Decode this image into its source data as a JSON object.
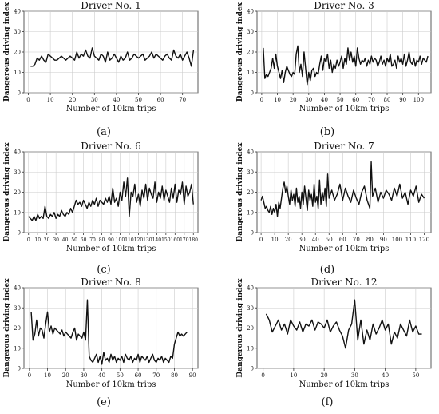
{
  "figure": {
    "panel_labels": [
      "(a)",
      "(b)",
      "(c)",
      "(d)",
      "(e)",
      "(f)"
    ]
  },
  "chart_data": [
    {
      "type": "line",
      "title": "Driver No. 1",
      "xlabel": "Number of 10km trips",
      "ylabel": "Dangerous driving index",
      "xlim": [
        -2,
        77
      ],
      "ylim": [
        0,
        40
      ],
      "xticks": [
        0,
        10,
        20,
        30,
        40,
        50,
        60,
        70
      ],
      "yticks": [
        0,
        10,
        20,
        30,
        40
      ],
      "grid": true,
      "series": [
        {
          "values": [
            13,
            13,
            14,
            17,
            16,
            18,
            16,
            15,
            19,
            18,
            17,
            16,
            16,
            17,
            18,
            17,
            16,
            17,
            18,
            17,
            16,
            20,
            17,
            19,
            18,
            21,
            18,
            17,
            22,
            18,
            17,
            16,
            19,
            18,
            15,
            20,
            16,
            17,
            19,
            17,
            15,
            18,
            16,
            17,
            20,
            16,
            17,
            19,
            18,
            17,
            18,
            19,
            16,
            17,
            18,
            20,
            17,
            19,
            18,
            17,
            16,
            18,
            19,
            17,
            16,
            21,
            18,
            17,
            19,
            16,
            18,
            20,
            17,
            13,
            21
          ]
        }
      ]
    },
    {
      "type": "line",
      "title": "Driver No. 3",
      "xlabel": "Number of 10km trips",
      "ylabel": "Dangerous driving index",
      "xlim": [
        -3,
        108
      ],
      "ylim": [
        0,
        40
      ],
      "xticks": [
        0,
        10,
        20,
        30,
        40,
        50,
        60,
        70,
        80,
        90,
        100
      ],
      "yticks": [
        0,
        10,
        20,
        30,
        40
      ],
      "grid": true,
      "series": [
        {
          "values": [
            22,
            7,
            9,
            8,
            10,
            12,
            17,
            12,
            19,
            13,
            10,
            7,
            11,
            5,
            10,
            13,
            11,
            9,
            8,
            10,
            9,
            19,
            23,
            10,
            14,
            8,
            20,
            12,
            4,
            10,
            6,
            11,
            12,
            8,
            10,
            9,
            14,
            18,
            11,
            17,
            15,
            19,
            12,
            16,
            10,
            14,
            12,
            16,
            13,
            15,
            18,
            12,
            17,
            14,
            22,
            16,
            20,
            15,
            18,
            13,
            22,
            17,
            14,
            16,
            15,
            17,
            13,
            16,
            14,
            18,
            15,
            17,
            16,
            13,
            15,
            18,
            14,
            16,
            13,
            17,
            15,
            19,
            13,
            14,
            16,
            12,
            18,
            15,
            17,
            14,
            19,
            13,
            16,
            20,
            15,
            14,
            17,
            13,
            16,
            15,
            18,
            14,
            17,
            16,
            15,
            18
          ]
        }
      ]
    },
    {
      "type": "line",
      "title": "Driver No. 6",
      "xlabel": "Number of 10km trips",
      "ylabel": "Dangerous driving index",
      "xlim": [
        -5,
        185
      ],
      "ylim": [
        0,
        40
      ],
      "xticks": [
        0,
        10,
        20,
        30,
        40,
        50,
        60,
        70,
        80,
        90,
        100,
        110,
        120,
        130,
        140,
        150,
        160,
        170,
        180
      ],
      "yticks": [
        0,
        10,
        20,
        30,
        40
      ],
      "grid": true,
      "series": [
        {
          "x": [
            0,
            2,
            4,
            6,
            8,
            10,
            12,
            14,
            16,
            18,
            20,
            22,
            24,
            26,
            28,
            30,
            32,
            34,
            36,
            38,
            40,
            42,
            44,
            46,
            48,
            50,
            52,
            54,
            56,
            58,
            60,
            62,
            64,
            66,
            68,
            70,
            72,
            74,
            76,
            78,
            80,
            82,
            84,
            86,
            88,
            90,
            92,
            94,
            96,
            98,
            100,
            102,
            104,
            106,
            108,
            110,
            112,
            114,
            116,
            118,
            120,
            122,
            124,
            126,
            128,
            130,
            132,
            134,
            136,
            138,
            140,
            142,
            144,
            146,
            148,
            150,
            152,
            154,
            156,
            158,
            160,
            162,
            164,
            166,
            168,
            170,
            172,
            174,
            176,
            178,
            180
          ],
          "values": [
            8,
            7,
            6,
            8,
            6,
            9,
            7,
            8,
            7,
            13,
            8,
            7,
            9,
            8,
            10,
            7,
            9,
            8,
            11,
            9,
            8,
            10,
            9,
            12,
            10,
            13,
            16,
            14,
            15,
            13,
            16,
            14,
            12,
            15,
            13,
            16,
            14,
            17,
            13,
            16,
            15,
            14,
            17,
            15,
            18,
            14,
            22,
            15,
            17,
            13,
            20,
            16,
            25,
            18,
            27,
            8,
            20,
            18,
            24,
            15,
            19,
            13,
            21,
            17,
            24,
            16,
            22,
            19,
            17,
            25,
            15,
            20,
            17,
            23,
            16,
            21,
            18,
            15,
            22,
            17,
            24,
            15,
            21,
            19,
            25,
            14,
            23,
            18,
            20,
            24,
            14
          ]
        }
      ]
    },
    {
      "type": "line",
      "title": "Driver No. 7",
      "xlabel": "Number of 10km trips",
      "ylabel": "Dangerous driving index",
      "xlim": [
        -3,
        125
      ],
      "ylim": [
        0,
        40
      ],
      "xticks": [
        0,
        10,
        20,
        30,
        40,
        50,
        60,
        70,
        80,
        90,
        100,
        110,
        120
      ],
      "yticks": [
        0,
        10,
        20,
        30,
        40
      ],
      "grid": true,
      "series": [
        {
          "x": [
            0,
            1,
            2,
            3,
            4,
            5,
            6,
            7,
            8,
            9,
            10,
            11,
            12,
            13,
            14,
            15,
            16,
            17,
            18,
            19,
            20,
            21,
            22,
            23,
            24,
            25,
            26,
            27,
            28,
            29,
            30,
            31,
            32,
            33,
            34,
            35,
            36,
            37,
            38,
            39,
            40,
            41,
            42,
            43,
            44,
            45,
            46,
            47,
            48,
            49,
            50,
            52,
            54,
            56,
            58,
            60,
            62,
            64,
            66,
            68,
            70,
            72,
            74,
            76,
            78,
            80,
            81,
            82,
            84,
            86,
            88,
            90,
            92,
            94,
            96,
            98,
            100,
            102,
            104,
            106,
            108,
            110,
            112,
            114,
            116,
            118,
            120
          ],
          "values": [
            16,
            18,
            15,
            12,
            13,
            11,
            10,
            13,
            9,
            12,
            10,
            14,
            8,
            15,
            12,
            17,
            22,
            25,
            20,
            23,
            18,
            14,
            21,
            16,
            19,
            13,
            22,
            15,
            18,
            12,
            20,
            14,
            23,
            17,
            11,
            21,
            16,
            19,
            13,
            24,
            15,
            18,
            12,
            26,
            14,
            20,
            16,
            22,
            13,
            29,
            17,
            21,
            16,
            19,
            24,
            16,
            22,
            18,
            15,
            21,
            17,
            14,
            20,
            23,
            16,
            12,
            35,
            18,
            22,
            15,
            20,
            17,
            21,
            19,
            16,
            22,
            18,
            24,
            17,
            20,
            14,
            21,
            18,
            23,
            15,
            19,
            17
          ]
        }
      ]
    },
    {
      "type": "line",
      "title": "Driver No. 8",
      "xlabel": "Number of 10km trips",
      "ylabel": "Dangerous driving index",
      "xlim": [
        -3,
        93
      ],
      "ylim": [
        0,
        40
      ],
      "xticks": [
        0,
        10,
        20,
        30,
        40,
        50,
        60,
        70,
        80,
        90
      ],
      "yticks": [
        0,
        10,
        20,
        30,
        40
      ],
      "grid": true,
      "series": [
        {
          "values": [
            28,
            14,
            17,
            24,
            16,
            20,
            19,
            15,
            22,
            28,
            18,
            21,
            17,
            20,
            19,
            18,
            17,
            19,
            16,
            18,
            17,
            16,
            15,
            18,
            20,
            14,
            17,
            16,
            15,
            18,
            14,
            34,
            6,
            4,
            3,
            5,
            7,
            3,
            6,
            2,
            8,
            4,
            5,
            3,
            7,
            4,
            6,
            3,
            5,
            4,
            6,
            3,
            7,
            5,
            4,
            6,
            3,
            5,
            4,
            7,
            3,
            6,
            5,
            4,
            6,
            3,
            5,
            7,
            4,
            3,
            5,
            4,
            6,
            3,
            5,
            4,
            3,
            6,
            5,
            12,
            15,
            18,
            16,
            17,
            16,
            17,
            18
          ]
        }
      ]
    },
    {
      "type": "line",
      "title": "Driver No. 12",
      "xlabel": "Number of 10km trips",
      "ylabel": "Dangerous driving index",
      "xlim": [
        -2,
        55
      ],
      "ylim": [
        0,
        40
      ],
      "xticks": [
        0,
        10,
        20,
        30,
        40,
        50
      ],
      "yticks": [
        0,
        10,
        20,
        30,
        40
      ],
      "grid": true,
      "series": [
        {
          "values": [
            27,
            24,
            18,
            21,
            24,
            19,
            22,
            17,
            24,
            21,
            19,
            23,
            18,
            22,
            21,
            24,
            19,
            23,
            22,
            20,
            24,
            18,
            21,
            23,
            19,
            16,
            10,
            19,
            22,
            34,
            14,
            24,
            12,
            19,
            14,
            22,
            17,
            20,
            24,
            19,
            22,
            12,
            18,
            15,
            22,
            19,
            16,
            24,
            18,
            21,
            17,
            17
          ]
        }
      ]
    }
  ]
}
